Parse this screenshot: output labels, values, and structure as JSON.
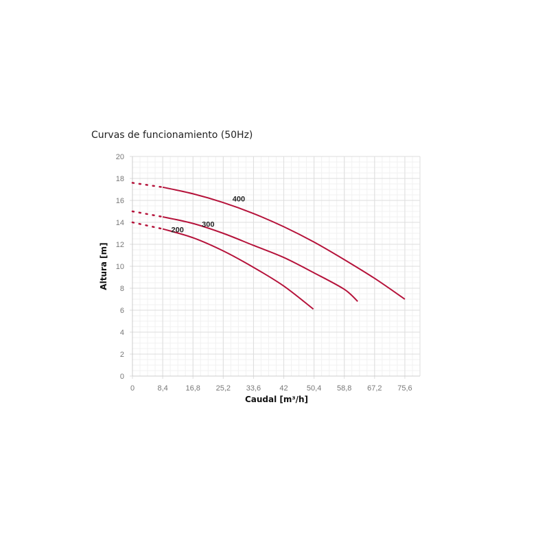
{
  "chart_data": {
    "type": "line",
    "title": "Curvas de funcionamiento (50Hz)",
    "xlabel": "Caudal [m³/h]",
    "ylabel": "Altura [m]",
    "xlim": [
      0,
      79.8
    ],
    "ylim": [
      0,
      20
    ],
    "xticks": [
      "0",
      "8,4",
      "16,8",
      "25,2",
      "33,6",
      "42",
      "50,4",
      "58,8",
      "67,2",
      "75,6"
    ],
    "xtick_values": [
      0,
      8.4,
      16.8,
      25.2,
      33.6,
      42,
      50.4,
      58.8,
      67.2,
      75.6
    ],
    "yticks": [
      "0",
      "2",
      "4",
      "6",
      "8",
      "10",
      "12",
      "14",
      "16",
      "18",
      "20"
    ],
    "grid": true,
    "line_color": "#b5123a",
    "series": [
      {
        "name": "200",
        "dotted": {
          "x": [
            0,
            8.4
          ],
          "y": [
            14.0,
            13.4
          ]
        },
        "x": [
          8.4,
          16.8,
          25.2,
          33.6,
          42,
          50.2
        ],
        "y": [
          13.4,
          12.6,
          11.4,
          9.9,
          8.2,
          6.1
        ],
        "label_at": [
          12.5,
          13.1
        ]
      },
      {
        "name": "300",
        "dotted": {
          "x": [
            0,
            8.4
          ],
          "y": [
            15.0,
            14.5
          ]
        },
        "x": [
          8.4,
          16.8,
          25.2,
          33.6,
          42,
          50.4,
          58.8,
          62.5
        ],
        "y": [
          14.5,
          13.9,
          13.0,
          11.9,
          10.8,
          9.4,
          7.9,
          6.8
        ],
        "label_at": [
          21,
          13.6
        ]
      },
      {
        "name": "400",
        "dotted": {
          "x": [
            0,
            8.4
          ],
          "y": [
            17.6,
            17.2
          ]
        },
        "x": [
          8.4,
          16.8,
          25.2,
          33.6,
          42,
          50.4,
          58.8,
          67.2,
          75.6
        ],
        "y": [
          17.2,
          16.6,
          15.8,
          14.8,
          13.6,
          12.2,
          10.6,
          8.9,
          7.0
        ],
        "label_at": [
          29.5,
          15.9
        ]
      }
    ]
  }
}
